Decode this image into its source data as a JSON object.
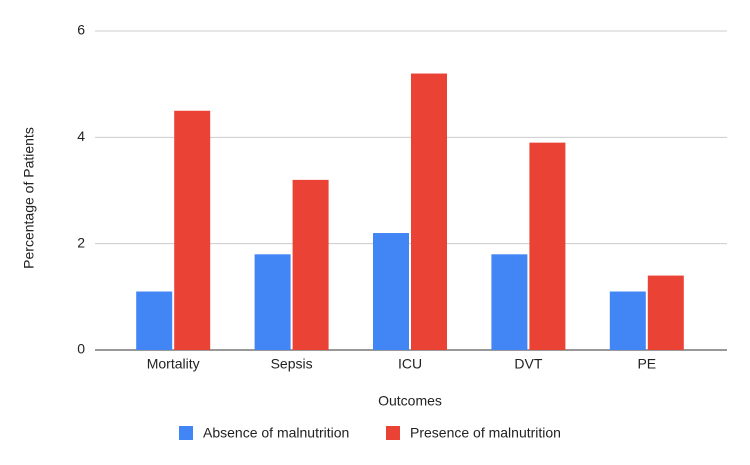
{
  "chart_data": {
    "type": "bar",
    "x_label": "Outcomes",
    "y_label": "Percentage of Patients",
    "categories": [
      "Mortality",
      "Sepsis",
      "ICU",
      "DVT",
      "PE"
    ],
    "series": [
      {
        "name": "Absence of malnutrition",
        "color": "#4285f4",
        "values": [
          1.1,
          1.8,
          2.2,
          1.8,
          1.1
        ]
      },
      {
        "name": "Presence of malnutrition",
        "color": "#ea4335",
        "values": [
          4.5,
          3.2,
          5.2,
          3.9,
          1.4
        ]
      }
    ],
    "ylim": [
      0,
      6
    ],
    "yticks": [
      0,
      2,
      4,
      6
    ],
    "grid": true,
    "legend": "bottom"
  }
}
